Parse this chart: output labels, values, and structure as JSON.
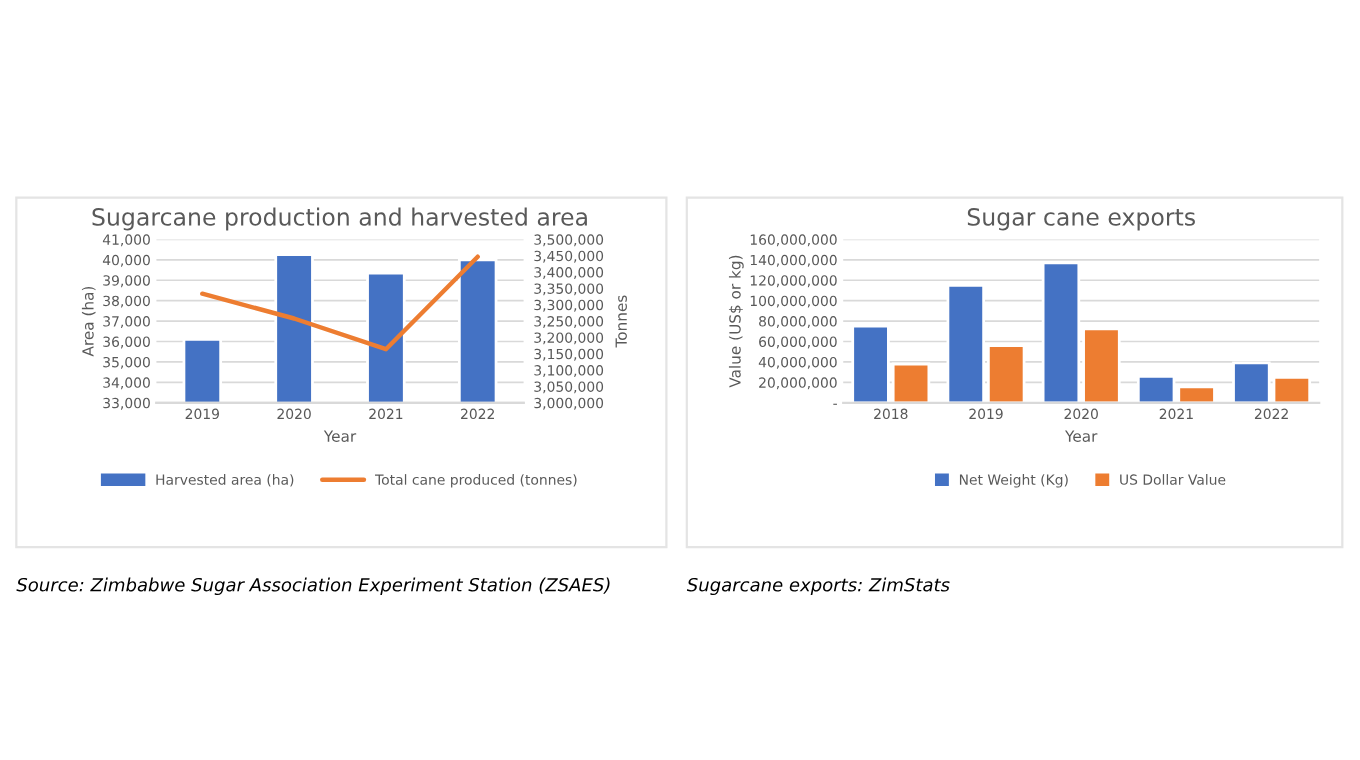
{
  "chart_data": [
    {
      "type": "bar",
      "title": "Sugarcane production and harvested area",
      "xlabel": "Year",
      "ylabel": "Area (ha)",
      "y2label": "Tonnes",
      "categories": [
        "2019",
        "2020",
        "2021",
        "2022"
      ],
      "series": [
        {
          "name": "Harvested area (ha)",
          "color": "#4472c4",
          "values": [
            36100,
            40250,
            39350,
            40000
          ]
        },
        {
          "name": "Total cane produced (tonnes)",
          "type": "line",
          "axis": "y2",
          "color": "#ed7d31",
          "values": [
            3334000,
            3258000,
            3164000,
            3447000
          ]
        }
      ],
      "ylim": [
        33000,
        41000
      ],
      "yticks": [
        {
          "value": 33000,
          "label": "33,000"
        },
        {
          "value": 34000,
          "label": "34,000"
        },
        {
          "value": 35000,
          "label": "35,000"
        },
        {
          "value": 36000,
          "label": "36,000"
        },
        {
          "value": 37000,
          "label": "37,000"
        },
        {
          "value": 38000,
          "label": "38,000"
        },
        {
          "value": 39000,
          "label": "39,000"
        },
        {
          "value": 40000,
          "label": "40,000"
        },
        {
          "value": 41000,
          "label": "41,000"
        }
      ],
      "y2lim": [
        3000000,
        3500000
      ],
      "y2ticks": [
        {
          "value": 3000000,
          "label": "3,000,000"
        },
        {
          "value": 3050000,
          "label": "3,050,000"
        },
        {
          "value": 3100000,
          "label": "3,100,000"
        },
        {
          "value": 3150000,
          "label": "3,150,000"
        },
        {
          "value": 3200000,
          "label": "3,200,000"
        },
        {
          "value": 3250000,
          "label": "3,250,000"
        },
        {
          "value": 3300000,
          "label": "3,300,000"
        },
        {
          "value": 3350000,
          "label": "3,350,000"
        },
        {
          "value": 3400000,
          "label": "3,400,000"
        },
        {
          "value": 3450000,
          "label": "3,450,000"
        },
        {
          "value": 3500000,
          "label": "3,500,000"
        }
      ],
      "grid": "y",
      "legend": "bottom",
      "annotations": [
        "Source: Zimbabwe Sugar Association Experiment Station (ZSAES)"
      ]
    },
    {
      "type": "bar",
      "title": "Sugar cane exports",
      "xlabel": "Year",
      "ylabel": "Value (US$ or kg)",
      "categories": [
        "2018",
        "2019",
        "2020",
        "2021",
        "2022"
      ],
      "series": [
        {
          "name": "Net Weight (Kg)",
          "color": "#4472c4",
          "values": [
            75000000,
            115000000,
            137000000,
            26000000,
            39000000
          ]
        },
        {
          "name": "US Dollar Value",
          "color": "#ed7d31",
          "values": [
            38000000,
            56000000,
            72500000,
            15700000,
            25000000
          ]
        }
      ],
      "ylim": [
        0,
        160000000
      ],
      "yticks": [
        {
          "value": 0,
          "label": "-"
        },
        {
          "value": 20000000,
          "label": "20,000,000"
        },
        {
          "value": 40000000,
          "label": "40,000,000"
        },
        {
          "value": 60000000,
          "label": "60,000,000"
        },
        {
          "value": 80000000,
          "label": "80,000,000"
        },
        {
          "value": 100000000,
          "label": "100,000,000"
        },
        {
          "value": 120000000,
          "label": "120,000,000"
        },
        {
          "value": 140000000,
          "label": "140,000,000"
        },
        {
          "value": 160000000,
          "label": "160,000,000"
        }
      ],
      "grid": "y",
      "legend": "bottom",
      "annotations": [
        "Sugarcane exports: ZimStats"
      ]
    }
  ]
}
